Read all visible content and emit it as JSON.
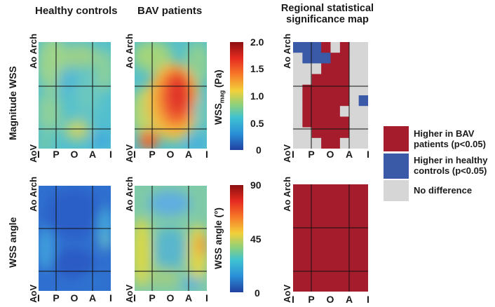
{
  "columns": {
    "healthy": "Healthy controls",
    "bav": "BAV patients",
    "significance_line1": "Regional statistical",
    "significance_line2": "significance map"
  },
  "rows": {
    "magnitude": "Magnitude WSS",
    "angle": "WSS angle"
  },
  "axis": {
    "top": "Ao Arch",
    "bottom": "AoV",
    "ticks": [
      "I",
      "P",
      "O",
      "A",
      "I"
    ]
  },
  "colorbar_magnitude": {
    "label_main": "WSS",
    "label_sub": "mag",
    "label_unit": " (Pa)",
    "ticks": [
      "2.0",
      "1.5",
      "1.0",
      "0.5",
      "0"
    ]
  },
  "colorbar_angle": {
    "label": "WSS angle (°)",
    "ticks": [
      "90",
      "45",
      "0"
    ]
  },
  "legend": {
    "higher_bav_line1": "Higher in BAV",
    "higher_bav_line2": "patients (p<0.05)",
    "higher_hc_line1": "Higher in healthy",
    "higher_hc_line2": "controls (p<0.05)",
    "no_diff": "No difference"
  },
  "colors": {
    "bav": "#a51c2c",
    "hc": "#3a5aa8",
    "none": "#d6d6d6"
  },
  "significance_grid_magnitude": [
    [
      "H",
      "H",
      "H",
      "B",
      "N",
      "B",
      "N",
      "N"
    ],
    [
      "N",
      "H",
      "H",
      "H",
      "B",
      "B",
      "N",
      "N"
    ],
    [
      "N",
      "N",
      "N",
      "B",
      "B",
      "B",
      "N",
      "N"
    ],
    [
      "N",
      "N",
      "B",
      "B",
      "B",
      "B",
      "N",
      "N"
    ],
    [
      "N",
      "B",
      "B",
      "B",
      "B",
      "B",
      "N",
      "N"
    ],
    [
      "N",
      "B",
      "B",
      "B",
      "B",
      "B",
      "N",
      "H"
    ],
    [
      "N",
      "B",
      "B",
      "B",
      "B",
      "N",
      "N",
      "N"
    ],
    [
      "N",
      "B",
      "B",
      "B",
      "B",
      "B",
      "N",
      "N"
    ],
    [
      "N",
      "N",
      "B",
      "B",
      "B",
      "B",
      "N",
      "N"
    ],
    [
      "N",
      "N",
      "N",
      "B",
      "B",
      "N",
      "N",
      "N"
    ]
  ]
}
